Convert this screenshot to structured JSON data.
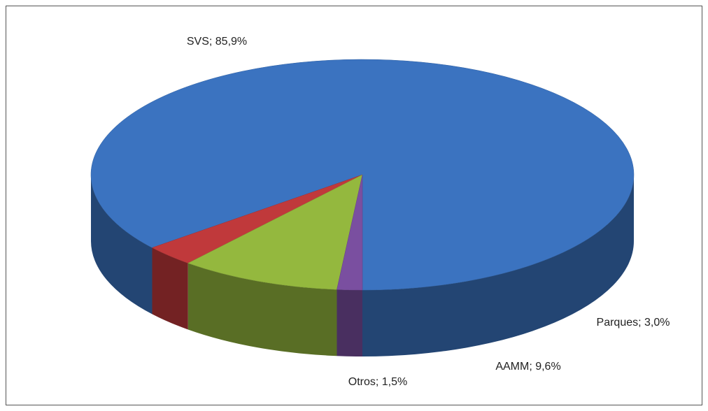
{
  "chart_data": {
    "type": "pie",
    "three_d": true,
    "values": [
      85.9,
      3.0,
      9.6,
      1.5
    ],
    "value_labels": [
      "SVS; 85,9%",
      "Parques; 3,0%",
      "AAMM; 9,6%",
      "Otros; 1,5%"
    ],
    "colors": [
      "#3b73c0",
      "#c0393b",
      "#94b83e",
      "#7a4fa0"
    ]
  }
}
